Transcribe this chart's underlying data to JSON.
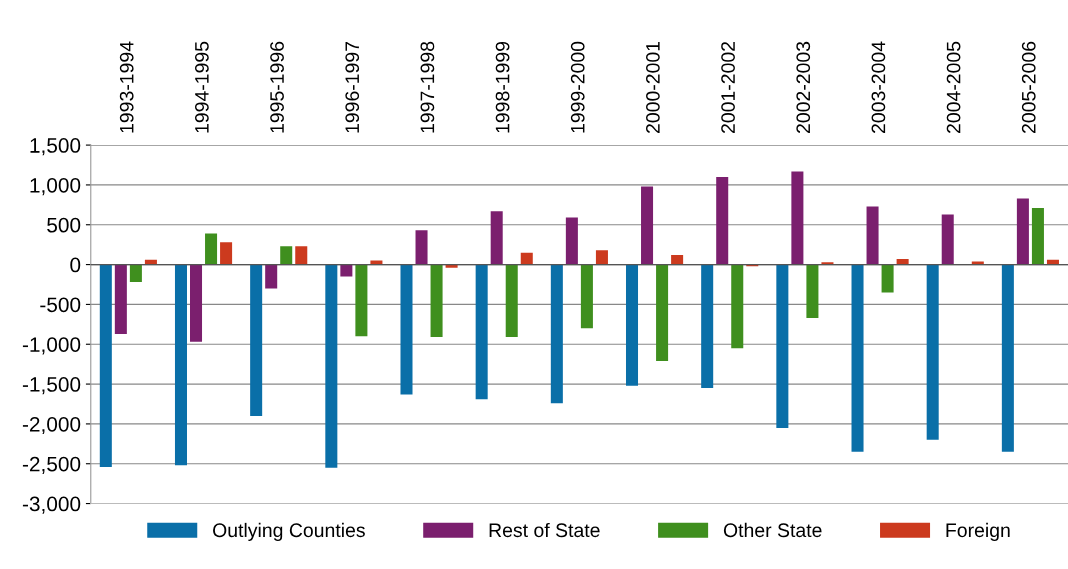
{
  "chart_data": {
    "type": "bar",
    "categories": [
      "1993-1994",
      "1994-1995",
      "1995-1996",
      "1996-1997",
      "1997-1998",
      "1998-1999",
      "1999-2000",
      "2000-2001",
      "2001-2002",
      "2002-2003",
      "2003-2004",
      "2004-2005",
      "2005-2006"
    ],
    "series": [
      {
        "name": "Outlying Counties",
        "color": "#0a6fa8",
        "values": [
          -2540,
          -2520,
          -1900,
          -2550,
          -1630,
          -1690,
          -1740,
          -1520,
          -1550,
          -2050,
          -2350,
          -2200,
          -2350
        ]
      },
      {
        "name": "Rest of State",
        "color": "#7b1f6e",
        "values": [
          -870,
          -970,
          -300,
          -150,
          430,
          670,
          590,
          980,
          1100,
          1170,
          730,
          630,
          830
        ]
      },
      {
        "name": "Other State",
        "color": "#3f8f1e",
        "values": [
          -220,
          390,
          230,
          -900,
          -910,
          -910,
          -800,
          -1210,
          -1050,
          -670,
          -350,
          0,
          710
        ]
      },
      {
        "name": "Foreign",
        "color": "#cc3a1e",
        "values": [
          60,
          280,
          230,
          50,
          -40,
          150,
          180,
          120,
          -20,
          30,
          70,
          40,
          60
        ]
      }
    ],
    "ylim": [
      -3000,
      1500
    ],
    "yticks": [
      {
        "value": -3000,
        "label": "-3,000"
      },
      {
        "value": -2500,
        "label": "-2,500"
      },
      {
        "value": -2000,
        "label": "-2,000"
      },
      {
        "value": -1500,
        "label": "-1,500"
      },
      {
        "value": -1000,
        "label": "-1,000"
      },
      {
        "value": -500,
        "label": "-500"
      },
      {
        "value": 0,
        "label": "0"
      },
      {
        "value": 500,
        "label": "500"
      },
      {
        "value": 1000,
        "label": "1,000"
      },
      {
        "value": 1500,
        "label": "1,500"
      }
    ],
    "grid": "y",
    "legend": "bottom"
  }
}
